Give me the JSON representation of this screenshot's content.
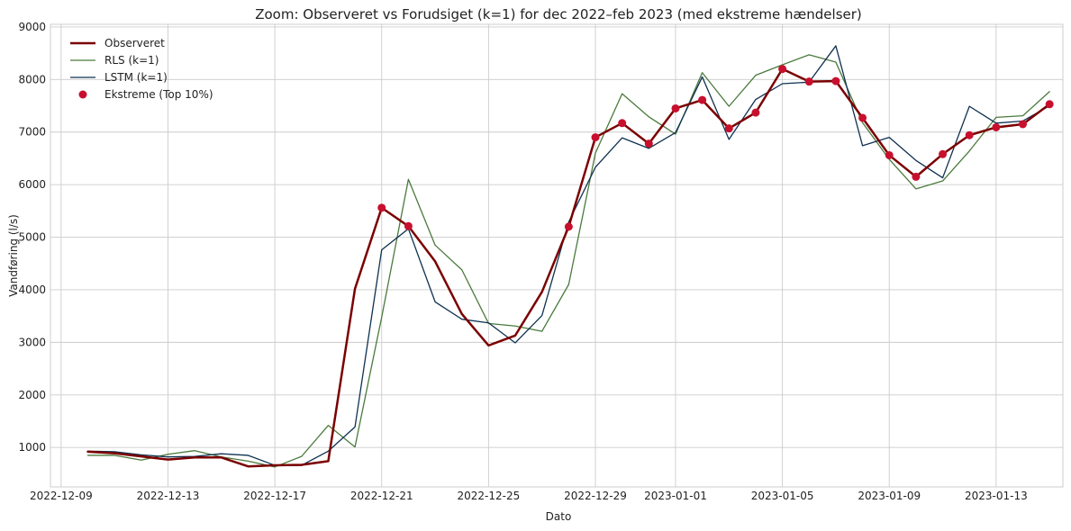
{
  "chart_data": {
    "type": "line",
    "title": "Zoom: Observeret vs Forudsiget (k=1) for dec 2022–feb 2023 (med ekstreme hændelser)",
    "xlabel": "Dato",
    "ylabel": "Vandføring (l/s)",
    "x_tick_labels": [
      "2022-12-09",
      "2022-12-13",
      "2022-12-17",
      "2022-12-21",
      "2022-12-25",
      "2022-12-29",
      "2023-01-01",
      "2023-01-05",
      "2023-01-09",
      "2023-01-13"
    ],
    "x_tick_days": [
      -1,
      3,
      7,
      11,
      15,
      19,
      22,
      26,
      30,
      34
    ],
    "xlim_days": [
      -1.4,
      36.5
    ],
    "ylim": [
      250,
      9050
    ],
    "y_ticks": [
      1000,
      2000,
      3000,
      4000,
      5000,
      6000,
      7000,
      8000,
      9000
    ],
    "grid": true,
    "legend_position": "top-left",
    "x_dates": [
      "2022-12-10",
      "2022-12-11",
      "2022-12-12",
      "2022-12-13",
      "2022-12-14",
      "2022-12-15",
      "2022-12-16",
      "2022-12-17",
      "2022-12-18",
      "2022-12-19",
      "2022-12-20",
      "2022-12-21",
      "2022-12-22",
      "2022-12-23",
      "2022-12-24",
      "2022-12-25",
      "2022-12-26",
      "2022-12-27",
      "2022-12-28",
      "2022-12-29",
      "2022-12-30",
      "2022-12-31",
      "2023-01-01",
      "2023-01-02",
      "2023-01-03",
      "2023-01-04",
      "2023-01-05",
      "2023-01-06",
      "2023-01-07",
      "2023-01-08",
      "2023-01-09",
      "2023-01-10",
      "2023-01-11",
      "2023-01-12",
      "2023-01-13",
      "2023-01-14",
      "2023-01-15"
    ],
    "series": [
      {
        "name": "Observeret",
        "color": "#7b0000",
        "width": 2.5,
        "values": [
          920,
          890,
          830,
          770,
          810,
          810,
          640,
          660,
          670,
          740,
          4020,
          5560,
          5210,
          4540,
          3540,
          2940,
          3130,
          3960,
          5200,
          6900,
          7170,
          6780,
          7450,
          7610,
          7070,
          7370,
          8200,
          7960,
          7970,
          7270,
          6560,
          6150,
          6580,
          6940,
          7090,
          7150,
          7530
        ]
      },
      {
        "name": "RLS (k=1)",
        "color": "#4a7a3c",
        "width": 1.3,
        "values": [
          850,
          850,
          760,
          870,
          940,
          820,
          740,
          630,
          830,
          1420,
          1010,
          3480,
          6100,
          4850,
          4380,
          3360,
          3310,
          3210,
          4100,
          6600,
          7730,
          7290,
          6960,
          8130,
          7490,
          8080,
          8280,
          8470,
          8330,
          7180,
          6480,
          5920,
          6070,
          6640,
          7280,
          7310,
          7770
        ]
      },
      {
        "name": "LSTM (k=1)",
        "color": "#0e3150",
        "width": 1.3,
        "values": [
          930,
          920,
          860,
          820,
          830,
          880,
          850,
          660,
          660,
          930,
          1390,
          4760,
          5160,
          3770,
          3440,
          3370,
          2990,
          3510,
          5290,
          6330,
          6890,
          6690,
          6990,
          8050,
          6860,
          7620,
          7920,
          7950,
          8640,
          6740,
          6900,
          6460,
          6130,
          7490,
          7170,
          7210,
          7500
        ]
      }
    ],
    "extremes": {
      "name": "Ekstreme (Top 10%)",
      "color": "#c8102e",
      "indices": [
        11,
        12,
        18,
        19,
        20,
        21,
        22,
        23,
        24,
        25,
        26,
        27,
        28,
        29,
        30,
        31,
        32,
        33,
        34,
        35,
        36
      ]
    }
  }
}
